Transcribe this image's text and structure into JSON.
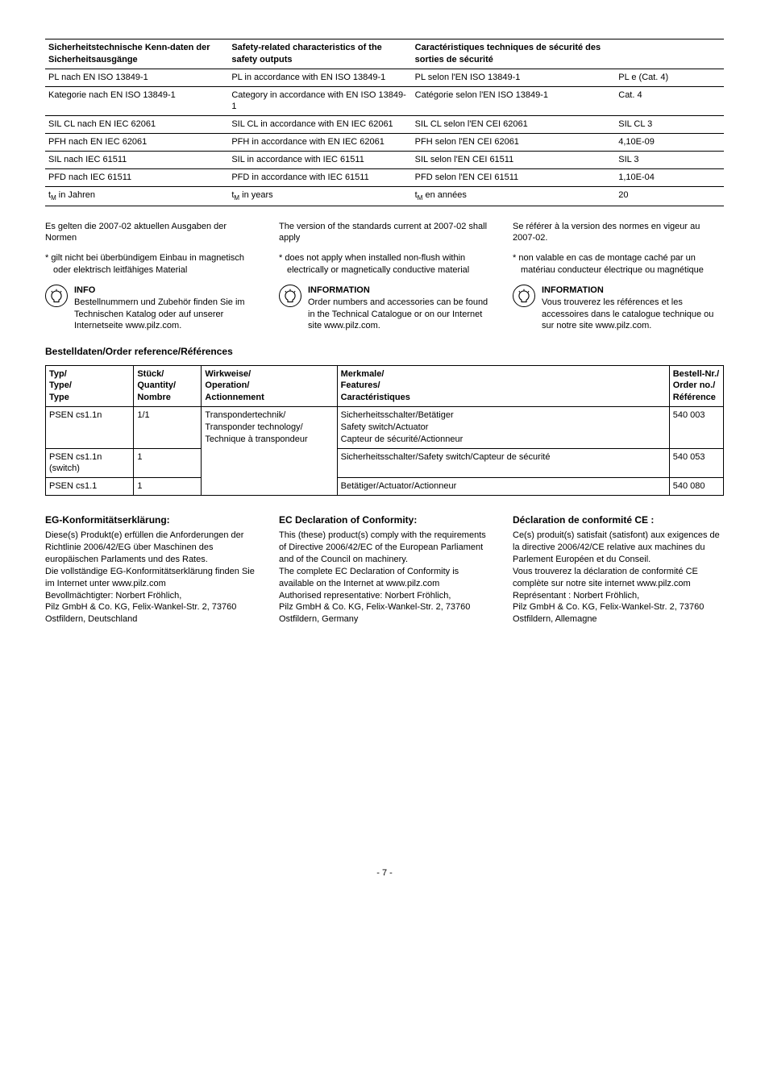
{
  "safety_table": {
    "headers": {
      "de": "Sicherheitstechnische Kenn-daten der Sicherheitsausgänge",
      "en": "Safety-related characteristics of the safety outputs",
      "fr": "Caractéristiques techniques de sécurité des sorties de sécurité"
    },
    "rows": [
      {
        "de": "PL nach EN ISO 13849-1",
        "en": "PL in accordance with EN ISO 13849-1",
        "fr": "PL selon l'EN ISO 13849-1",
        "val": "PL e (Cat. 4)"
      },
      {
        "de": "Kategorie nach EN ISO 13849-1",
        "en": "Category in accordance with EN ISO 13849-1",
        "fr": "Catégorie selon l'EN ISO 13849-1",
        "val": "Cat. 4"
      },
      {
        "de": "SIL CL nach EN IEC 62061",
        "en": "SIL CL in accordance with EN IEC 62061",
        "fr": "SIL CL selon l'EN CEI 62061",
        "val": "SIL CL 3"
      },
      {
        "de": "PFH nach EN IEC 62061",
        "en": "PFH in accordance with EN IEC 62061",
        "fr": "PFH selon l'EN CEI 62061",
        "val": "4,10E-09"
      },
      {
        "de": "SIL nach IEC 61511",
        "en": "SIL in accordance with IEC 61511",
        "fr": "SIL selon l'EN CEI 61511",
        "val": "SIL 3"
      },
      {
        "de": "PFD nach IEC 61511",
        "en": "PFD in accordance with IEC 61511",
        "fr": "PFD selon l'EN CEI 61511",
        "val": "1,10E-04"
      },
      {
        "de_html": "t<sub>M</sub> in Jahren",
        "en_html": "t<sub>M</sub> in years",
        "fr_html": "t<sub>M</sub> en années",
        "val": "20"
      }
    ]
  },
  "notes": {
    "de": {
      "version": "Es gelten die 2007-02 aktuellen Ausgaben der Normen",
      "asterisk": "* gilt nicht bei überbündigem Einbau in magnetisch oder elektrisch leitfähiges Material",
      "info_title": "INFO",
      "info_body": "Bestellnummern und Zubehör finden Sie im Technischen Katalog oder auf unserer Internetseite www.pilz.com."
    },
    "en": {
      "version": "The version of the standards current at 2007-02 shall apply",
      "asterisk": "* does not apply when installed non-flush within electrically or magnetically conductive material",
      "info_title": "INFORMATION",
      "info_body": "Order numbers and accessories can be found in the Technical Catalogue or on our Internet site www.pilz.com."
    },
    "fr": {
      "version": "Se référer à la version des normes en vigeur au 2007-02.",
      "asterisk": "* non valable en cas de montage caché par un matériau conducteur électrique ou magnétique",
      "info_title": "INFORMATION",
      "info_body": "Vous trouverez les références et les accessoires dans le catalogue technique ou sur notre site www.pilz.com."
    }
  },
  "order_section_title": "Bestelldaten/Order reference/Références",
  "order_table": {
    "headers": {
      "type": "Typ/\nType/\nType",
      "qty": "Stück/\nQuantity/\nNombre",
      "op": "Wirkweise/\nOperation/\nActionnement",
      "feat": "Merkmale/\nFeatures/\nCaractéristiques",
      "ref": "Bestell-Nr./\nOrder no./\nRéférence"
    },
    "row1": {
      "type": "PSEN cs1.1n",
      "qty": "1/1",
      "op": "Transpondertechnik/\nTransponder technology/\nTechnique à transpondeur",
      "feat": "Sicherheitsschalter/Betätiger\nSafety switch/Actuator\nCapteur de sécurité/Actionneur",
      "ref": "540 003"
    },
    "row2": {
      "type": "PSEN cs1.1n (switch)",
      "qty": "1",
      "feat": "Sicherheitsschalter/Safety switch/Capteur de sécurité",
      "ref": "540 053"
    },
    "row3": {
      "type": "PSEN cs1.1",
      "qty": "1",
      "feat": "Betätiger/Actuator/Actionneur",
      "ref": "540 080"
    }
  },
  "conformity": {
    "de": {
      "title": "EG-Konformitätserklärung:",
      "body": "Diese(s) Produkt(e) erfüllen die Anforderungen der Richtlinie 2006/42/EG über Maschinen des europäischen Parlaments und des Rates.\nDie vollständige EG-Konformitätserklärung finden Sie im Internet unter www.pilz.com\nBevollmächtigter: Norbert Fröhlich,\nPilz GmbH & Co. KG, Felix-Wankel-Str. 2, 73760 Ostfildern, Deutschland"
    },
    "en": {
      "title": "EC Declaration of Conformity:",
      "body": "This (these) product(s) comply with the requirements of Directive 2006/42/EC of the European Parliament and of the Council on machinery.\nThe complete EC Declaration of Conformity is available on the Internet at www.pilz.com\nAuthorised representative: Norbert Fröhlich,\nPilz GmbH & Co. KG, Felix-Wankel-Str. 2, 73760 Ostfildern, Germany"
    },
    "fr": {
      "title": "Déclaration de conformité CE :",
      "body": "Ce(s) produit(s) satisfait (satisfont) aux exigences de la directive 2006/42/CE relative aux machines du Parlement Européen et du Conseil.\nVous trouverez la déclaration de conformité CE complète sur notre site internet www.pilz.com\nReprésentant : Norbert Fröhlich,\nPilz GmbH & Co. KG, Felix-Wankel-Str. 2, 73760 Ostfildern, Allemagne"
    }
  },
  "page_number": "- 7 -"
}
